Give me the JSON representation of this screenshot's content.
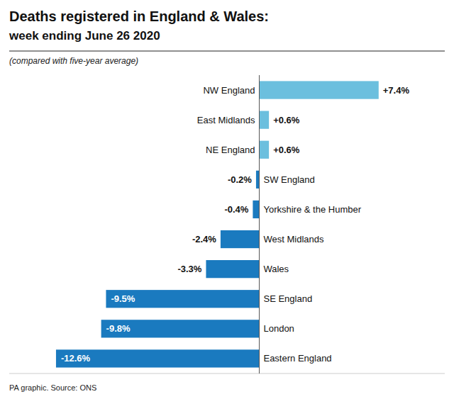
{
  "chart_data": {
    "type": "bar",
    "orientation": "horizontal",
    "title": [
      "Deaths registered in England & Wales:",
      "week ending June 26 2020"
    ],
    "subtitle": "(compared with five-year average)",
    "annotations": [
      "PA graphic. Source: ONS"
    ],
    "categories": [
      "NW England",
      "East Midlands",
      "NE England",
      "SW England",
      "Yorkshire & the Humber",
      "West Midlands",
      "Wales",
      "SE England",
      "London",
      "Eastern England"
    ],
    "values": [
      7.4,
      0.6,
      0.6,
      -0.2,
      -0.4,
      -2.4,
      -3.3,
      -9.5,
      -9.8,
      -12.6
    ],
    "value_labels": [
      "+7.4%",
      "+0.6%",
      "+0.6%",
      "-0.2%",
      "-0.4%",
      "-2.4%",
      "-3.3%",
      "-9.5%",
      "-9.8%",
      "-12.6%"
    ],
    "colors": [
      "#6bbfde",
      "#6bbfde",
      "#6bbfde",
      "#1a7abf",
      "#1a7abf",
      "#1a7abf",
      "#1a7abf",
      "#1a7abf",
      "#1a7abf",
      "#1a7abf"
    ],
    "xlim": [
      -15.5,
      11.5
    ],
    "data_labels": true,
    "tick_labels": false,
    "grid": false
  }
}
